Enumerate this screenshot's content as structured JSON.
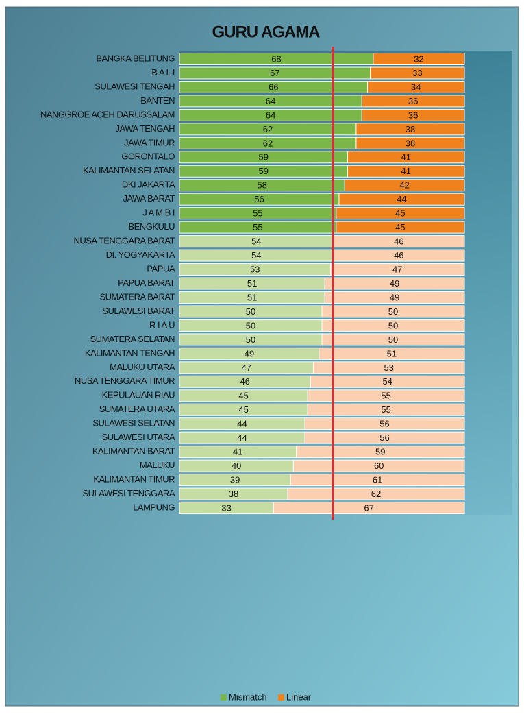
{
  "chart_data": {
    "type": "stacked-bar-horizontal",
    "title": "GURU AGAMA",
    "categories": [
      "BANGKA BELITUNG",
      "B A L I",
      "SULAWESI TENGAH",
      "BANTEN",
      "NANGGROE ACEH DARUSSALAM",
      "JAWA TENGAH",
      "JAWA TIMUR",
      "GORONTALO",
      "KALIMANTAN SELATAN",
      "DKI JAKARTA",
      "JAWA BARAT",
      "J A M B I",
      "BENGKULU",
      "NUSA TENGGARA BARAT",
      "DI. YOGYAKARTA",
      "PAPUA",
      "PAPUA BARAT",
      "SUMATERA BARAT",
      "SULAWESI BARAT",
      "R I A U",
      "SUMATERA SELATAN",
      "KALIMANTAN TENGAH",
      "MALUKU UTARA",
      "NUSA TENGGARA TIMUR",
      "KEPULAUAN RIAU",
      "SUMATERA UTARA",
      "SULAWESI SELATAN",
      "SULAWESI UTARA",
      "KALIMANTAN BARAT",
      "MALUKU",
      "KALIMANTAN TIMUR",
      "SULAWESI TENGGARA",
      "LAMPUNG"
    ],
    "series": [
      {
        "name": "Mismatch",
        "color": "#7ab648",
        "light_color": "#c5dca3",
        "values": [
          68,
          67,
          66,
          64,
          64,
          62,
          62,
          59,
          59,
          58,
          56,
          55,
          55,
          54,
          54,
          53,
          51,
          51,
          50,
          50,
          50,
          49,
          47,
          46,
          45,
          45,
          44,
          44,
          41,
          40,
          39,
          38,
          33
        ]
      },
      {
        "name": "Linear",
        "color": "#f0821e",
        "light_color": "#fad0b0",
        "values": [
          32,
          33,
          34,
          36,
          36,
          38,
          38,
          41,
          41,
          42,
          44,
          45,
          45,
          46,
          46,
          47,
          49,
          49,
          50,
          50,
          50,
          51,
          53,
          54,
          55,
          55,
          56,
          56,
          59,
          60,
          61,
          62,
          67
        ]
      }
    ],
    "highlighted_rows": 13,
    "xlim": [
      0,
      100
    ],
    "legend": "bottom"
  }
}
